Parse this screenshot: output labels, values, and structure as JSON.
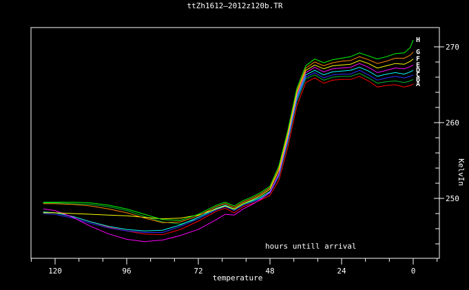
{
  "window": {
    "title": "ttZh1612—2012z120b.TR"
  },
  "chart_data": {
    "type": "line",
    "title": "ttZh1612—2012z120b.TR",
    "xlabel": "temperature",
    "ylabel": "KelvIn",
    "annotation": "hours untill arrival",
    "background": "#000000",
    "foreground": "#ffffff",
    "grid": false,
    "legend_position": "line-end-letters",
    "x_axis": {
      "side": "bottom",
      "reversed": true,
      "range": [
        128,
        -9
      ],
      "ticks_major": [
        120,
        96,
        72,
        48,
        24,
        0
      ],
      "tick_labels": [
        "120",
        "96",
        "72",
        "48",
        "24",
        "0"
      ],
      "ticks_minor": [
        128,
        112,
        104,
        88,
        80,
        64,
        56,
        40,
        32,
        16,
        8,
        -8
      ]
    },
    "y_axis": {
      "side": "right",
      "range": [
        242,
        272.5
      ],
      "ticks_major": [
        270,
        260,
        250
      ],
      "tick_labels": [
        "270",
        "260",
        "250"
      ],
      "ticks_minor": [
        268,
        266,
        264,
        262,
        258,
        256,
        254,
        252,
        248,
        246,
        244
      ]
    },
    "x": [
      124,
      120,
      114,
      108,
      102,
      96,
      90,
      84,
      78,
      72,
      66,
      63,
      60,
      57,
      54,
      51,
      48,
      45,
      42,
      39,
      36,
      33,
      30,
      27,
      24,
      21,
      18,
      15,
      12,
      9,
      6,
      3,
      1,
      0
    ],
    "series": [
      {
        "name": "A",
        "label": "A",
        "color": "#ff0000",
        "values": [
          248.2,
          248.1,
          247.6,
          246.9,
          246.2,
          245.7,
          245.3,
          245.2,
          245.9,
          247.0,
          248.3,
          248.7,
          248.1,
          248.9,
          249.3,
          249.8,
          250.4,
          252.4,
          256.8,
          262.2,
          265.3,
          265.9,
          265.2,
          265.6,
          265.7,
          265.7,
          266.1,
          265.5,
          264.7,
          264.9,
          265.0,
          264.7,
          264.9,
          265.1
        ]
      },
      {
        "name": "B",
        "label": "B",
        "color": "#00b830",
        "values": [
          249.4,
          249.4,
          249.3,
          249.2,
          248.9,
          248.4,
          247.6,
          246.9,
          246.6,
          247.3,
          248.6,
          249.0,
          248.5,
          249.2,
          249.6,
          250.1,
          250.7,
          252.9,
          257.4,
          262.8,
          265.8,
          266.3,
          265.6,
          266.0,
          266.1,
          266.1,
          266.5,
          265.9,
          265.2,
          265.4,
          265.5,
          265.3,
          265.5,
          265.7
        ]
      },
      {
        "name": "C",
        "label": "C",
        "color": "#3030ff",
        "values": [
          248.0,
          247.9,
          247.4,
          246.7,
          246.1,
          245.7,
          245.5,
          245.5,
          246.3,
          247.3,
          248.5,
          248.9,
          248.4,
          249.1,
          249.5,
          250.0,
          250.7,
          253.0,
          257.6,
          263.0,
          266.0,
          266.6,
          265.9,
          266.3,
          266.4,
          266.4,
          266.9,
          266.3,
          265.6,
          265.9,
          266.1,
          265.9,
          266.1,
          266.3
        ]
      },
      {
        "name": "D",
        "label": "D",
        "color": "#00ffff",
        "values": [
          248.2,
          248.1,
          247.6,
          246.9,
          246.3,
          245.9,
          245.7,
          245.8,
          246.5,
          247.5,
          248.7,
          249.1,
          248.6,
          249.3,
          249.7,
          250.2,
          250.9,
          253.2,
          257.9,
          263.3,
          266.3,
          266.9,
          266.3,
          266.7,
          266.8,
          266.9,
          267.3,
          266.8,
          266.1,
          266.4,
          266.6,
          266.4,
          266.7,
          266.9
        ]
      },
      {
        "name": "E",
        "label": "E",
        "color": "#ff00ff",
        "values": [
          248.6,
          248.4,
          247.5,
          246.3,
          245.3,
          244.6,
          244.3,
          244.5,
          245.1,
          245.9,
          247.2,
          247.9,
          247.8,
          248.6,
          249.2,
          249.9,
          250.8,
          253.3,
          258.1,
          263.6,
          266.6,
          267.3,
          266.7,
          267.1,
          267.2,
          267.3,
          267.8,
          267.3,
          266.6,
          266.9,
          267.2,
          267.1,
          267.4,
          267.6
        ]
      },
      {
        "name": "F",
        "label": "F",
        "color": "#ffff00",
        "values": [
          248.1,
          248.1,
          248.0,
          247.9,
          247.8,
          247.7,
          247.5,
          247.3,
          247.4,
          247.8,
          248.6,
          249.0,
          248.6,
          249.3,
          249.8,
          250.4,
          251.2,
          253.7,
          258.4,
          263.9,
          266.9,
          267.6,
          267.1,
          267.5,
          267.6,
          267.7,
          268.2,
          267.8,
          267.2,
          267.5,
          267.8,
          267.7,
          268.1,
          268.4
        ]
      },
      {
        "name": "G",
        "label": "G",
        "color": "#ff8800",
        "values": [
          249.3,
          249.3,
          249.2,
          249.0,
          248.6,
          248.1,
          247.4,
          246.8,
          246.9,
          247.7,
          248.9,
          249.3,
          248.8,
          249.5,
          250.0,
          250.6,
          251.4,
          254.0,
          258.7,
          264.2,
          267.2,
          268.0,
          267.5,
          267.9,
          268.1,
          268.2,
          268.7,
          268.3,
          267.8,
          268.1,
          268.5,
          268.5,
          268.9,
          269.3
        ]
      },
      {
        "name": "H",
        "label": "H",
        "color": "#00ff00",
        "values": [
          249.5,
          249.5,
          249.5,
          249.4,
          249.1,
          248.6,
          247.9,
          247.2,
          247.1,
          247.9,
          249.1,
          249.5,
          249.0,
          249.7,
          250.2,
          250.8,
          251.6,
          254.3,
          259.0,
          264.5,
          267.5,
          268.4,
          267.9,
          268.3,
          268.5,
          268.7,
          269.2,
          268.8,
          268.4,
          268.7,
          269.1,
          269.2,
          269.9,
          270.9
        ]
      }
    ]
  }
}
